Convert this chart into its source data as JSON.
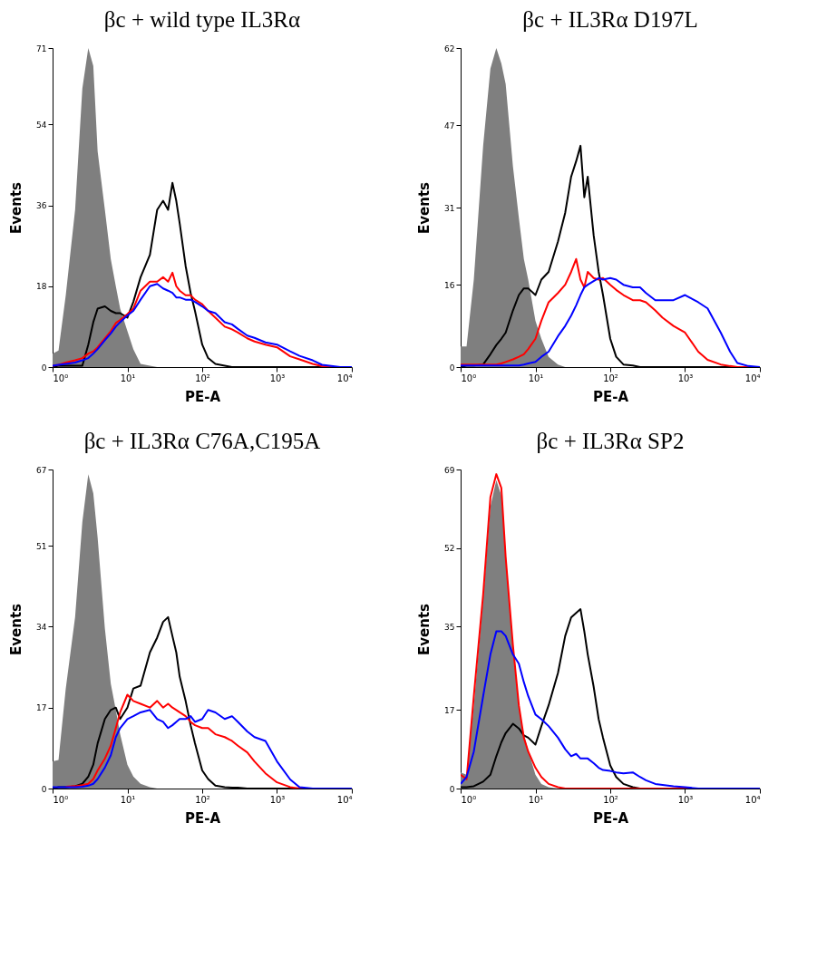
{
  "chart_data": [
    {
      "type": "line",
      "title": "βc + wild type IL3Rα",
      "xlabel": "PE-A",
      "ylabel": "Events",
      "log": "x",
      "grid": false,
      "xlim": [
        1,
        10000
      ],
      "ylim": [
        0,
        71
      ],
      "xticks": [
        {
          "value": 1,
          "label": "10⁰"
        },
        {
          "value": 10,
          "label": "10¹"
        },
        {
          "value": 100,
          "label": "10²"
        },
        {
          "value": 1000,
          "label": "10³"
        },
        {
          "value": 10000,
          "label": "10⁴"
        }
      ],
      "yticks": [
        0,
        18,
        36,
        54,
        71
      ],
      "x": [
        1,
        1.2,
        1.5,
        2,
        2.5,
        3,
        3.5,
        4,
        5,
        6,
        7,
        8,
        10,
        12,
        15,
        20,
        25,
        30,
        35,
        40,
        45,
        50,
        60,
        70,
        80,
        100,
        120,
        150,
        200,
        250,
        300,
        400,
        500,
        700,
        1000,
        1500,
        2000,
        3000,
        4000,
        5000,
        7000,
        10000
      ],
      "series": [
        {
          "type": "area",
          "color": "#7f7f7f",
          "values": [
            3,
            3.7,
            16,
            35,
            62,
            71,
            67,
            48,
            35,
            24,
            18,
            13,
            8,
            4,
            0.7,
            0.3,
            0,
            0,
            0,
            0,
            0,
            0,
            0,
            0,
            0,
            0,
            0,
            0,
            0,
            0,
            0,
            0,
            0,
            0,
            0,
            0,
            0,
            0,
            0,
            0,
            0,
            0
          ]
        },
        {
          "color": "#000000",
          "values": [
            0,
            0.3,
            0.3,
            0.3,
            0.3,
            5,
            10,
            13,
            13.5,
            12.5,
            12,
            12,
            11,
            14.5,
            20,
            25,
            35,
            37,
            35,
            41,
            37,
            32,
            22.5,
            16.5,
            12.5,
            5,
            2,
            0.7,
            0.3,
            0,
            0,
            0,
            0,
            0,
            0,
            0,
            0,
            0,
            0,
            0,
            0,
            0
          ]
        },
        {
          "color": "#ff0000",
          "values": [
            0.3,
            0.5,
            1,
            1.5,
            2,
            3,
            3.5,
            4.4,
            6.4,
            8,
            9.8,
            10.5,
            11.8,
            13,
            17,
            19,
            19,
            20,
            19,
            21,
            18,
            17,
            16,
            16,
            15,
            14,
            12.5,
            11,
            9,
            8.4,
            7.7,
            6.4,
            5.7,
            5,
            4.4,
            2.4,
            1.7,
            0.7,
            0.2,
            0,
            0,
            0
          ]
        },
        {
          "color": "#0000ff",
          "values": [
            0.3,
            0.5,
            0.7,
            1,
            1.5,
            2,
            3,
            4,
            6,
            7.5,
            9,
            10,
            11.5,
            12.5,
            15,
            18,
            18.5,
            17.5,
            17,
            16.5,
            15.5,
            15.5,
            15,
            15,
            14.5,
            13.5,
            12.5,
            12,
            10,
            9.5,
            8.5,
            7,
            6.5,
            5.5,
            5,
            3.5,
            2.5,
            1.5,
            0.5,
            0.3,
            0,
            0
          ]
        }
      ]
    },
    {
      "type": "line",
      "title": "βc + IL3Rα D197L",
      "xlabel": "PE-A",
      "ylabel": "Events",
      "log": "x",
      "grid": false,
      "xlim": [
        1,
        10000
      ],
      "ylim": [
        0,
        62
      ],
      "xticks": [
        {
          "value": 1,
          "label": "10⁰"
        },
        {
          "value": 10,
          "label": "10¹"
        },
        {
          "value": 100,
          "label": "10²"
        },
        {
          "value": 1000,
          "label": "10³"
        },
        {
          "value": 10000,
          "label": "10⁴"
        }
      ],
      "yticks": [
        0,
        16,
        31,
        47,
        62
      ],
      "x": [
        1,
        1.2,
        1.5,
        2,
        2.5,
        3,
        3.5,
        4,
        5,
        6,
        7,
        8,
        10,
        12,
        15,
        20,
        25,
        30,
        35,
        40,
        45,
        50,
        60,
        70,
        80,
        100,
        120,
        150,
        200,
        250,
        300,
        400,
        500,
        700,
        1000,
        1500,
        2000,
        3000,
        4000,
        5000,
        7000,
        10000
      ],
      "series": [
        {
          "type": "area",
          "color": "#7f7f7f",
          "values": [
            4,
            4,
            17,
            43,
            58,
            62,
            59,
            55,
            39,
            29,
            21,
            17,
            9,
            5.5,
            2,
            0.5,
            0,
            0,
            0,
            0,
            0,
            0,
            0,
            0,
            0,
            0,
            0,
            0,
            0,
            0,
            0,
            0,
            0,
            0,
            0,
            0,
            0,
            0,
            0,
            0,
            0,
            0
          ]
        },
        {
          "color": "#000000",
          "values": [
            0,
            0.3,
            0.3,
            0.5,
            2.5,
            4.3,
            5.5,
            6.7,
            11,
            14,
            15.3,
            15.3,
            14,
            17,
            18.5,
            24.4,
            30,
            37,
            40,
            43,
            33,
            37,
            25.6,
            18.5,
            14,
            5.5,
            2,
            0.5,
            0.3,
            0,
            0,
            0,
            0,
            0,
            0,
            0,
            0,
            0,
            0,
            0,
            0,
            0
          ]
        },
        {
          "color": "#ff0000",
          "values": [
            0.5,
            0.5,
            0.5,
            0.5,
            0.5,
            0.5,
            0.7,
            1,
            1.5,
            2,
            2.5,
            3.5,
            5.5,
            9,
            12.6,
            14.4,
            16,
            18.5,
            21,
            17,
            15.5,
            18.5,
            17.3,
            17,
            17.3,
            16,
            15,
            14,
            13,
            13,
            12.6,
            11,
            9.6,
            8,
            6.7,
            3,
            1.4,
            0.5,
            0.2,
            0,
            0,
            0
          ]
        },
        {
          "color": "#0000ff",
          "values": [
            0.3,
            0.3,
            0.3,
            0.3,
            0.3,
            0.3,
            0.3,
            0.3,
            0.3,
            0.3,
            0.5,
            0.7,
            1,
            2,
            3,
            6,
            8,
            10,
            12,
            14,
            15.5,
            16,
            16.7,
            17.3,
            17,
            17.3,
            17,
            16,
            15.5,
            15.5,
            14.4,
            13,
            13,
            13,
            14,
            12.6,
            11.4,
            6.7,
            3,
            0.8,
            0.2,
            0
          ]
        }
      ]
    },
    {
      "type": "line",
      "title": "βc + IL3Rα C76A,C195A",
      "xlabel": "PE-A",
      "ylabel": "Events",
      "log": "x",
      "grid": false,
      "xlim": [
        1,
        10000
      ],
      "ylim": [
        0,
        67
      ],
      "xticks": [
        {
          "value": 1,
          "label": "10⁰"
        },
        {
          "value": 10,
          "label": "10¹"
        },
        {
          "value": 100,
          "label": "10²"
        },
        {
          "value": 1000,
          "label": "10³"
        },
        {
          "value": 10000,
          "label": "10⁴"
        }
      ],
      "yticks": [
        0,
        17,
        34,
        51,
        67
      ],
      "x": [
        1,
        1.2,
        1.5,
        2,
        2.5,
        3,
        3.5,
        4,
        5,
        6,
        7,
        8,
        10,
        12,
        15,
        20,
        25,
        30,
        35,
        40,
        45,
        50,
        60,
        70,
        80,
        100,
        120,
        150,
        200,
        250,
        300,
        400,
        500,
        700,
        1000,
        1500,
        2000,
        3000,
        4000,
        5000,
        7000,
        10000
      ],
      "series": [
        {
          "type": "area",
          "color": "#7f7f7f",
          "values": [
            5.7,
            6,
            21,
            36,
            56,
            66,
            62,
            52.7,
            33.6,
            22,
            16.5,
            11.4,
            5,
            2.5,
            1,
            0.3,
            0,
            0,
            0,
            0,
            0,
            0,
            0,
            0,
            0,
            0,
            0,
            0,
            0,
            0,
            0,
            0,
            0,
            0,
            0,
            0,
            0,
            0,
            0,
            0,
            0,
            0
          ]
        },
        {
          "color": "#000000",
          "values": [
            0,
            0.3,
            0.3,
            0.5,
            1,
            2.5,
            5,
            9.5,
            14.6,
            16.5,
            17,
            14.6,
            17,
            21,
            21.6,
            28.6,
            31.7,
            35,
            36,
            32,
            28.6,
            23.5,
            18.4,
            13.3,
            9.5,
            3.8,
            2,
            0.6,
            0.3,
            0.2,
            0.2,
            0,
            0,
            0,
            0,
            0,
            0,
            0,
            0,
            0,
            0,
            0
          ]
        },
        {
          "color": "#ff0000",
          "values": [
            null,
            null,
            0.4,
            0.5,
            0.7,
            1,
            2,
            3.8,
            6.3,
            9,
            12.7,
            16,
            19.7,
            18.4,
            17.8,
            17,
            18.4,
            17,
            17.8,
            17,
            16.5,
            16,
            15.2,
            14,
            13.3,
            12.7,
            12.7,
            11.4,
            10.8,
            10,
            9,
            7.6,
            5.7,
            3.2,
            1.3,
            0.3,
            0,
            0,
            null,
            null,
            null,
            null
          ]
        },
        {
          "color": "#0000ff",
          "values": [
            0.3,
            0.3,
            0.3,
            0.3,
            0.4,
            0.6,
            1,
            2,
            4.4,
            7,
            10.8,
            12.7,
            14.6,
            15.2,
            16,
            16.5,
            14.6,
            14,
            12.7,
            13.3,
            14,
            14.6,
            14.6,
            15.2,
            14,
            14.6,
            16.5,
            16,
            14.6,
            15.2,
            14,
            12,
            10.8,
            10,
            5.7,
            1.9,
            0.3,
            0,
            0,
            0,
            0,
            0
          ]
        }
      ]
    },
    {
      "type": "line",
      "title": "βc + IL3Rα SP2",
      "xlabel": "PE-A",
      "ylabel": "Events",
      "log": "x",
      "grid": false,
      "xlim": [
        1,
        10000
      ],
      "ylim": [
        0,
        69
      ],
      "xticks": [
        {
          "value": 1,
          "label": "10⁰"
        },
        {
          "value": 10,
          "label": "10¹"
        },
        {
          "value": 100,
          "label": "10²"
        },
        {
          "value": 1000,
          "label": "10³"
        },
        {
          "value": 10000,
          "label": "10⁴"
        }
      ],
      "yticks": [
        0,
        17,
        35,
        52,
        69
      ],
      "x": [
        1,
        1.2,
        1.5,
        2,
        2.5,
        3,
        3.5,
        4,
        5,
        6,
        7,
        8,
        10,
        12,
        15,
        20,
        25,
        30,
        35,
        40,
        45,
        50,
        60,
        70,
        80,
        100,
        120,
        150,
        200,
        250,
        300,
        400,
        500,
        700,
        1000,
        1500,
        2000,
        3000,
        4000,
        5000,
        7000,
        10000
      ],
      "series": [
        {
          "type": "area",
          "color": "#7f7f7f",
          "values": [
            3.5,
            3,
            18,
            41,
            61,
            66.7,
            63.4,
            51,
            30.6,
            17.5,
            11.6,
            8.3,
            3,
            1,
            0.3,
            0,
            0,
            0,
            0,
            0,
            0,
            0,
            0,
            0,
            0,
            0,
            0,
            0,
            0,
            0,
            0,
            0,
            0,
            0,
            0,
            0,
            0,
            0,
            0,
            0,
            0,
            0
          ]
        },
        {
          "color": "#000000",
          "values": [
            0.3,
            0.3,
            0.5,
            1.5,
            3,
            7,
            10,
            12,
            14,
            13,
            11.5,
            11,
            9.5,
            13.5,
            18,
            25,
            33,
            37,
            38,
            38.8,
            34,
            29,
            22,
            15,
            11,
            5,
            2.5,
            1,
            0.3,
            0,
            0,
            0,
            0,
            0,
            0,
            0,
            0,
            0,
            0,
            0,
            0,
            0
          ]
        },
        {
          "color": "#ff0000",
          "values": [
            3,
            2,
            20,
            42,
            63,
            68,
            65,
            50,
            31,
            18,
            11,
            8,
            4.5,
            2.5,
            1,
            0.3,
            0,
            0,
            0,
            0,
            0,
            0,
            0,
            0,
            0,
            0,
            0,
            0,
            0,
            0,
            0,
            0,
            0,
            0,
            0,
            0,
            null,
            null,
            null,
            null,
            null,
            null
          ]
        },
        {
          "color": "#0000ff",
          "values": [
            1,
            2.5,
            8,
            20,
            29,
            34,
            34,
            33,
            29,
            27,
            23,
            20,
            16,
            15,
            13.5,
            11,
            8.5,
            7,
            7.5,
            6.5,
            6.5,
            6.5,
            5.5,
            4.5,
            4,
            3.8,
            3.5,
            3.3,
            3.5,
            2.5,
            1.8,
            1,
            0.8,
            0.5,
            0.3,
            0,
            0,
            0,
            0,
            0,
            0,
            0
          ]
        }
      ]
    }
  ]
}
